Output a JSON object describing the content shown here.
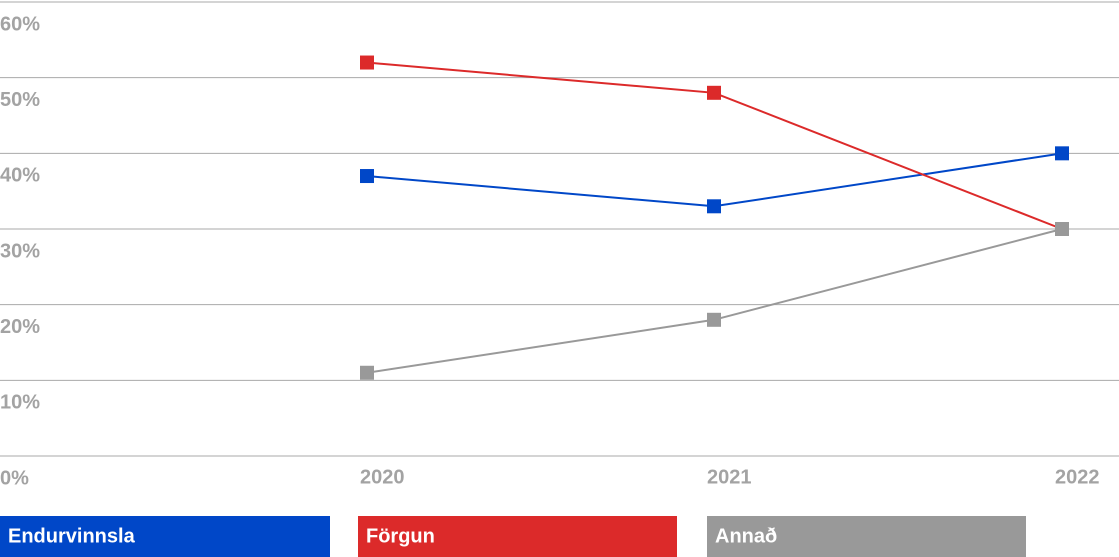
{
  "chart_data": {
    "type": "line",
    "categories": [
      "2020",
      "2021",
      "2022"
    ],
    "series": [
      {
        "name": "Endurvinnsla",
        "color": "#0047c8",
        "values": [
          37,
          33,
          40
        ]
      },
      {
        "name": "Förgun",
        "color": "#dc2a2a",
        "values": [
          52,
          48,
          30
        ]
      },
      {
        "name": "Annað",
        "color": "#999999",
        "values": [
          11,
          18,
          30
        ]
      }
    ],
    "ylim": [
      0,
      60
    ],
    "yticks": [
      {
        "value": 0,
        "label": "0%"
      },
      {
        "value": 10,
        "label": "10%"
      },
      {
        "value": 20,
        "label": "20%"
      },
      {
        "value": 30,
        "label": "30%"
      },
      {
        "value": 40,
        "label": "40%"
      },
      {
        "value": 50,
        "label": "50%"
      },
      {
        "value": 60,
        "label": "60%"
      }
    ],
    "grid": true
  }
}
